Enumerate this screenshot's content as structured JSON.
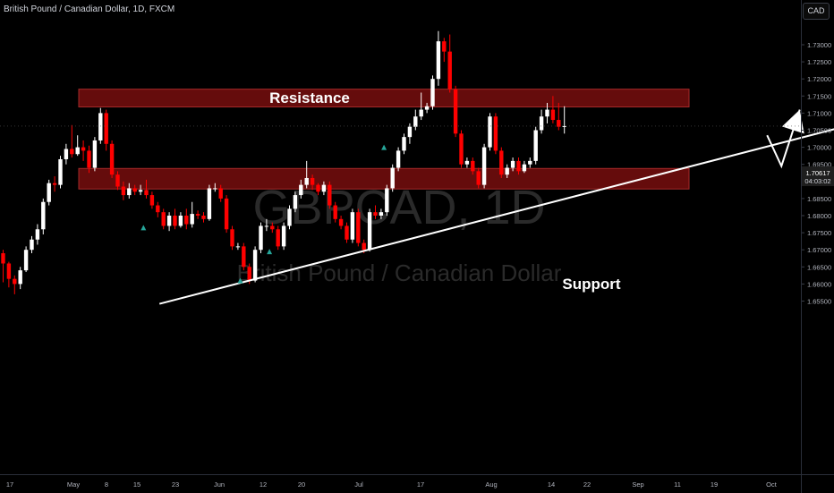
{
  "header": {
    "symbol_title": "British Pound / Canadian Dollar, 1D, FXCM",
    "currency_button": "CAD"
  },
  "watermark": {
    "symbol": "GBPCAD, 1D",
    "name": "British Pound / Canadian Dollar"
  },
  "price_label": {
    "price": "1.70617",
    "countdown": "04:03:02"
  },
  "annotations": {
    "resistance_label": "Resistance",
    "support_label": "Support"
  },
  "colors": {
    "up_candle": "#ffffff",
    "down_candle": "#ff0000",
    "zone_fill": "#6e0d0d",
    "zone_border": "#a52a2a",
    "trendline": "#ffffff",
    "axis_text": "#b2b5be"
  },
  "chart_data": {
    "type": "candlestick",
    "title": "British Pound / Canadian Dollar, 1D, FXCM",
    "y_ticks": [
      "1.73000",
      "1.72500",
      "1.72000",
      "1.71500",
      "1.71000",
      "1.70500",
      "1.70000",
      "1.69500",
      "1.69000",
      "1.68500",
      "1.68000",
      "1.67500",
      "1.67000",
      "1.66500",
      "1.66000",
      "1.65500"
    ],
    "x_ticks": [
      "17",
      "May",
      "8",
      "15",
      "23",
      "Jun",
      "12",
      "20",
      "Jul",
      "17",
      "Aug",
      "14",
      "22",
      "Sep",
      "11",
      "19",
      "Oct"
    ],
    "ylim": [
      1.6525,
      1.7355
    ],
    "candles": [
      [
        1.669,
        1.666,
        1.67,
        1.6605
      ],
      [
        1.666,
        1.6615,
        1.6665,
        1.659
      ],
      [
        1.6615,
        1.66,
        1.6625,
        1.657
      ],
      [
        1.66,
        1.664,
        1.665,
        1.6585
      ],
      [
        1.664,
        1.67,
        1.671,
        1.6635
      ],
      [
        1.67,
        1.673,
        1.674,
        1.669
      ],
      [
        1.673,
        1.676,
        1.6775,
        1.6715
      ],
      [
        1.676,
        1.684,
        1.685,
        1.6745
      ],
      [
        1.684,
        1.6895,
        1.6905,
        1.683
      ],
      [
        1.6895,
        1.689,
        1.6915,
        1.687
      ],
      [
        1.689,
        1.6965,
        1.6975,
        1.688
      ],
      [
        1.6965,
        1.6995,
        1.701,
        1.695
      ],
      [
        1.6995,
        1.698,
        1.7065,
        1.697
      ],
      [
        1.698,
        1.7,
        1.7035,
        1.6975
      ],
      [
        1.7,
        1.699,
        1.702,
        1.696
      ],
      [
        1.699,
        1.694,
        1.7005,
        1.6925
      ],
      [
        1.694,
        1.702,
        1.703,
        1.693
      ],
      [
        1.702,
        1.71,
        1.7115,
        1.701
      ],
      [
        1.71,
        1.701,
        1.711,
        1.699
      ],
      [
        1.701,
        1.692,
        1.702,
        1.691
      ],
      [
        1.692,
        1.6885,
        1.693,
        1.6875
      ],
      [
        1.6885,
        1.686,
        1.69,
        1.6845
      ],
      [
        1.686,
        1.688,
        1.6895,
        1.685
      ],
      [
        1.688,
        1.687,
        1.689,
        1.686
      ],
      [
        1.687,
        1.6875,
        1.689,
        1.686
      ],
      [
        1.6875,
        1.686,
        1.6905,
        1.685
      ],
      [
        1.686,
        1.683,
        1.687,
        1.682
      ],
      [
        1.683,
        1.681,
        1.684,
        1.6795
      ],
      [
        1.681,
        1.677,
        1.682,
        1.676
      ],
      [
        1.677,
        1.68,
        1.681,
        1.6755
      ],
      [
        1.68,
        1.677,
        1.682,
        1.676
      ],
      [
        1.677,
        1.68,
        1.681,
        1.6765
      ],
      [
        1.68,
        1.6775,
        1.682,
        1.676
      ],
      [
        1.6775,
        1.6805,
        1.684,
        1.6765
      ],
      [
        1.6805,
        1.68,
        1.6815,
        1.679
      ],
      [
        1.68,
        1.679,
        1.681,
        1.678
      ],
      [
        1.679,
        1.688,
        1.689,
        1.6785
      ],
      [
        1.688,
        1.688,
        1.6895,
        1.687
      ],
      [
        1.688,
        1.685,
        1.689,
        1.684
      ],
      [
        1.685,
        1.676,
        1.686,
        1.675
      ],
      [
        1.676,
        1.671,
        1.677,
        1.67
      ],
      [
        1.671,
        1.671,
        1.672,
        1.67
      ],
      [
        1.671,
        1.665,
        1.672,
        1.664
      ],
      [
        1.665,
        1.661,
        1.666,
        1.66
      ],
      [
        1.661,
        1.67,
        1.671,
        1.6605
      ],
      [
        1.67,
        1.677,
        1.678,
        1.669
      ],
      [
        1.677,
        1.677,
        1.679,
        1.6755
      ],
      [
        1.677,
        1.676,
        1.678,
        1.675
      ],
      [
        1.676,
        1.671,
        1.677,
        1.67
      ],
      [
        1.671,
        1.677,
        1.678,
        1.67
      ],
      [
        1.677,
        1.682,
        1.683,
        1.676
      ],
      [
        1.682,
        1.686,
        1.687,
        1.681
      ],
      [
        1.686,
        1.689,
        1.6905,
        1.685
      ],
      [
        1.689,
        1.691,
        1.696,
        1.688
      ],
      [
        1.691,
        1.689,
        1.692,
        1.6875
      ],
      [
        1.689,
        1.687,
        1.6895,
        1.686
      ],
      [
        1.687,
        1.689,
        1.69,
        1.686
      ],
      [
        1.689,
        1.683,
        1.69,
        1.682
      ],
      [
        1.683,
        1.679,
        1.684,
        1.678
      ],
      [
        1.679,
        1.677,
        1.68,
        1.676
      ],
      [
        1.677,
        1.673,
        1.678,
        1.672
      ],
      [
        1.673,
        1.681,
        1.682,
        1.672
      ],
      [
        1.681,
        1.672,
        1.682,
        1.671
      ],
      [
        1.672,
        1.67,
        1.673,
        1.669
      ],
      [
        1.67,
        1.681,
        1.682,
        1.6695
      ],
      [
        1.681,
        1.68,
        1.683,
        1.679
      ],
      [
        1.68,
        1.681,
        1.682,
        1.679
      ],
      [
        1.681,
        1.688,
        1.689,
        1.68
      ],
      [
        1.688,
        1.694,
        1.695,
        1.687
      ],
      [
        1.694,
        1.699,
        1.7,
        1.693
      ],
      [
        1.699,
        1.703,
        1.704,
        1.698
      ],
      [
        1.703,
        1.706,
        1.707,
        1.701
      ],
      [
        1.706,
        1.709,
        1.711,
        1.705
      ],
      [
        1.709,
        1.711,
        1.716,
        1.708
      ],
      [
        1.711,
        1.712,
        1.713,
        1.71
      ],
      [
        1.712,
        1.72,
        1.721,
        1.711
      ],
      [
        1.72,
        1.731,
        1.734,
        1.718
      ],
      [
        1.731,
        1.728,
        1.732,
        1.725
      ],
      [
        1.728,
        1.717,
        1.733,
        1.716
      ],
      [
        1.717,
        1.704,
        1.718,
        1.703
      ],
      [
        1.704,
        1.695,
        1.705,
        1.694
      ],
      [
        1.695,
        1.696,
        1.697,
        1.694
      ],
      [
        1.696,
        1.693,
        1.697,
        1.692
      ],
      [
        1.693,
        1.689,
        1.694,
        1.688
      ],
      [
        1.689,
        1.7,
        1.701,
        1.688
      ],
      [
        1.7,
        1.709,
        1.71,
        1.699
      ],
      [
        1.709,
        1.699,
        1.71,
        1.698
      ],
      [
        1.699,
        1.692,
        1.7,
        1.691
      ],
      [
        1.692,
        1.694,
        1.695,
        1.691
      ],
      [
        1.694,
        1.696,
        1.697,
        1.693
      ],
      [
        1.696,
        1.693,
        1.697,
        1.692
      ],
      [
        1.693,
        1.695,
        1.696,
        1.6925
      ],
      [
        1.695,
        1.696,
        1.697,
        1.694
      ],
      [
        1.696,
        1.705,
        1.706,
        1.695
      ],
      [
        1.705,
        1.709,
        1.711,
        1.704
      ],
      [
        1.709,
        1.711,
        1.713,
        1.707
      ],
      [
        1.711,
        1.708,
        1.715,
        1.707
      ],
      [
        1.708,
        1.706,
        1.713,
        1.705
      ],
      [
        1.706,
        1.7062,
        1.712,
        1.704
      ]
    ],
    "resistance_zone": [
      1.7118,
      1.717
    ],
    "support_zone": [
      1.6878,
      1.6938
    ],
    "trendline": [
      [
        27.3,
        1.6542
      ],
      [
        149.5,
        1.7072
      ]
    ],
    "arrow_path": [
      [
        133.4,
        1.7035
      ],
      [
        135.9,
        1.6945
      ],
      [
        139.1,
        1.711
      ]
    ]
  }
}
